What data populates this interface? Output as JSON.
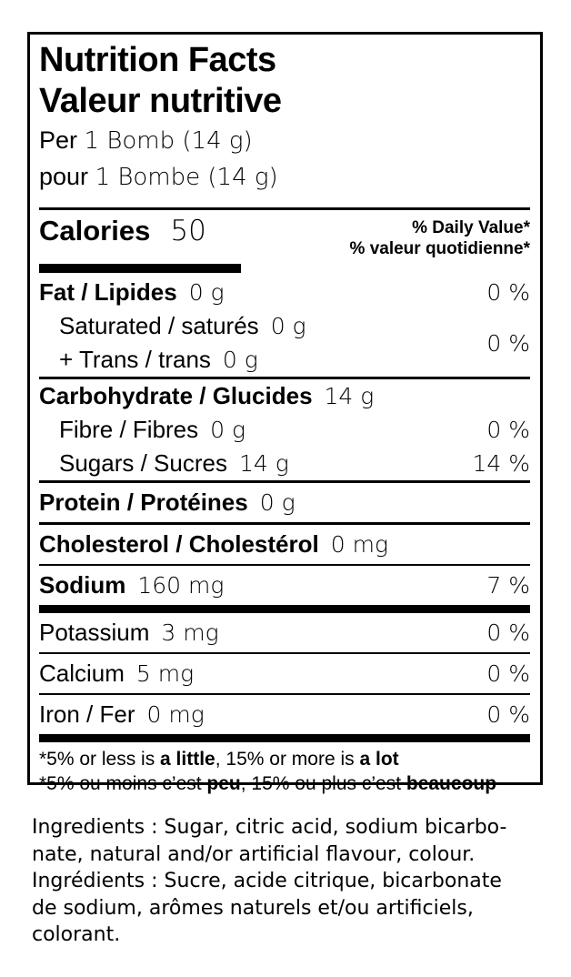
{
  "nutrition_label": {
    "title_en": "Nutrition Facts",
    "title_fr": "Valeur nutritive",
    "serving": {
      "en_prefix": "Per",
      "en_value": "1 Bomb (14 g)",
      "fr_prefix": "pour",
      "fr_value": "1 Bombe (14 g)"
    },
    "calories": {
      "label": "Calories",
      "value": "50"
    },
    "daily_value_header": {
      "en": "% Daily Value*",
      "fr": "% valeur quotidienne*"
    },
    "rows": {
      "fat": {
        "label": "Fat / Lipides",
        "amount": "0 g",
        "dv": "0 %"
      },
      "saturated": {
        "label": "Saturated / saturés",
        "amount": "0 g",
        "dv": "0 %"
      },
      "trans": {
        "label": "+ Trans / trans",
        "amount": "0 g"
      },
      "carbohydrate": {
        "label": "Carbohydrate / Glucides",
        "amount": "14 g"
      },
      "fibre": {
        "label": "Fibre / Fibres",
        "amount": "0 g",
        "dv": "0 %"
      },
      "sugars": {
        "label": "Sugars / Sucres",
        "amount": "14 g",
        "dv": "14 %"
      },
      "protein": {
        "label": "Protein / Protéines",
        "amount": "0 g"
      },
      "cholesterol": {
        "label": "Cholesterol / Cholestérol",
        "amount": "0 mg"
      },
      "sodium": {
        "label": "Sodium",
        "amount": "160 mg",
        "dv": "7 %"
      },
      "potassium": {
        "label": "Potassium",
        "amount": "3 mg",
        "dv": "0 %"
      },
      "calcium": {
        "label": "Calcium",
        "amount": "5 mg",
        "dv": "0 %"
      },
      "iron": {
        "label": "Iron / Fer",
        "amount": "0 mg",
        "dv": "0 %"
      }
    },
    "footnote": {
      "en": {
        "p1": "*5% or less is ",
        "b1": "a little",
        "p2": ", 15% or more is ",
        "b2": "a lot"
      },
      "fr": {
        "p1": "*5% ou moins c’est ",
        "b1": "peu",
        "p2": ", 15% ou plus c’est ",
        "b2": "beaucoup"
      }
    }
  },
  "ingredients": {
    "lines": [
      "Ingredients : Sugar, citric acid, sodium bicarbo-",
      "nate, natural and/or artificial flavour, colour.",
      "Ingrédients : Sucre, acide citrique, bicarbonate",
      "de sodium, arômes naturels et/ou artificiels,",
      "colorant."
    ]
  },
  "colors": {
    "text": "#000000",
    "background": "#ffffff",
    "rule": "#000000"
  }
}
